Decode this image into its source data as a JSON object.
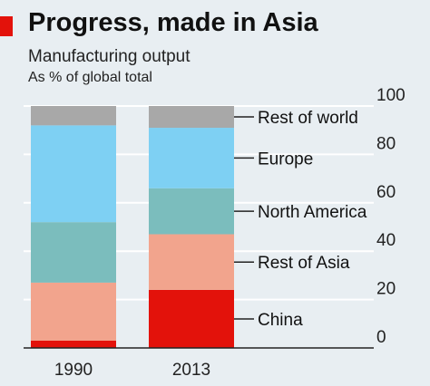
{
  "header": {
    "title": "Progress, made in Asia",
    "subtitle": "Manufacturing output",
    "units": "As % of global total"
  },
  "colors": {
    "background": "#e8eef2",
    "accent": "#e3120b",
    "axis": "#222222"
  },
  "chart_data": {
    "type": "bar",
    "stacked": true,
    "title": "Progress, made in Asia",
    "subtitle": "Manufacturing output",
    "ylabel": "As % of global total",
    "categories": [
      "1990",
      "2013"
    ],
    "ylim": [
      0,
      100
    ],
    "yticks": [
      0,
      20,
      40,
      60,
      80,
      100
    ],
    "grid": true,
    "y_axis_side": "right",
    "series": [
      {
        "name": "China",
        "color": "#e3120b",
        "values": [
          3,
          24
        ]
      },
      {
        "name": "Rest of Asia",
        "color": "#f2a48d",
        "values": [
          24,
          23
        ]
      },
      {
        "name": "North America",
        "color": "#7bbdbd",
        "values": [
          25,
          19
        ]
      },
      {
        "name": "Europe",
        "color": "#7ed0f3",
        "values": [
          40,
          25
        ]
      },
      {
        "name": "Rest of world",
        "color": "#a8a8a8",
        "values": [
          8,
          9
        ]
      }
    ]
  }
}
